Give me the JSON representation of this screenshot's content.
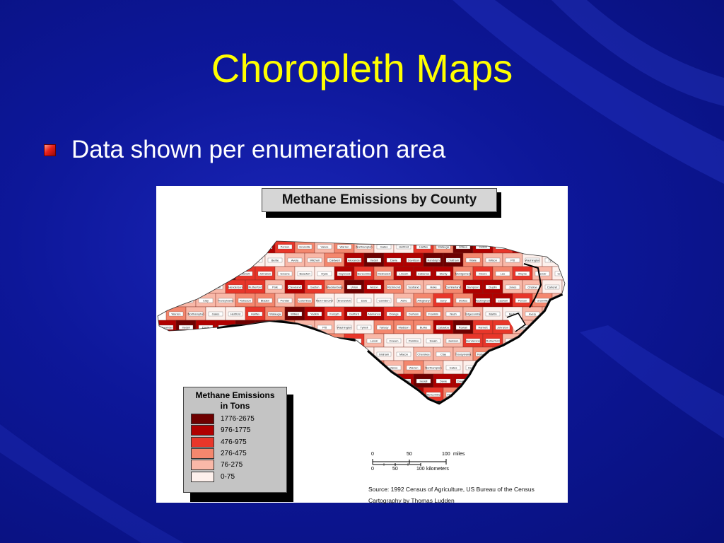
{
  "slide": {
    "title": "Choropleth Maps",
    "bullets": [
      "Data shown per enumeration area"
    ]
  },
  "map": {
    "title": "Methane Emissions by County",
    "legend": {
      "title_line1": "Methane Emissions",
      "title_line2": "in Tons",
      "classes": [
        {
          "label": "1776-2675",
          "color": "#6e0000"
        },
        {
          "label": "976-1775",
          "color": "#b00000"
        },
        {
          "label": "476-975",
          "color": "#e8362a"
        },
        {
          "label": "276-475",
          "color": "#f4876e"
        },
        {
          "label": "76-275",
          "color": "#f9b8a8"
        },
        {
          "label": "0-75",
          "color": "#fdf0ec"
        }
      ]
    },
    "scale": {
      "miles_ticks": [
        "0",
        "50",
        "100"
      ],
      "miles_unit": "miles",
      "km_ticks": [
        "0",
        "50",
        "100"
      ],
      "km_unit": "kilometers"
    },
    "source_line1": "Source: 1992 Census of Agriculture, US Bureau of the Census",
    "source_line2": "Cartography by Thomas Ludden",
    "counties": [
      {
        "name": "Ashe",
        "class": 4
      },
      {
        "name": "Alleghany",
        "class": 3
      },
      {
        "name": "Surry",
        "class": 2
      },
      {
        "name": "Stokes",
        "class": 3
      },
      {
        "name": "Rockingham",
        "class": 1
      },
      {
        "name": "Caswell",
        "class": 1
      },
      {
        "name": "Person",
        "class": 2
      },
      {
        "name": "Granville",
        "class": 3
      },
      {
        "name": "Vance",
        "class": 4
      },
      {
        "name": "Warren",
        "class": 3
      },
      {
        "name": "Northampton",
        "class": 4
      },
      {
        "name": "Gates",
        "class": 5
      },
      {
        "name": "Hertford",
        "class": 5
      },
      {
        "name": "Halifax",
        "class": 2
      },
      {
        "name": "Watauga",
        "class": 3
      },
      {
        "name": "Wilkes",
        "class": 0
      },
      {
        "name": "Yadkin",
        "class": 1
      },
      {
        "name": "Forsyth",
        "class": 2
      },
      {
        "name": "Guilford",
        "class": 1
      },
      {
        "name": "Alamance",
        "class": 1
      },
      {
        "name": "Orange",
        "class": 2
      },
      {
        "name": "Durham",
        "class": 3
      },
      {
        "name": "Franklin",
        "class": 3
      },
      {
        "name": "Nash",
        "class": 4
      },
      {
        "name": "Edgecombe",
        "class": 4
      },
      {
        "name": "Martin",
        "class": 5
      },
      {
        "name": "Bertie",
        "class": 5
      },
      {
        "name": "Avery",
        "class": 4
      },
      {
        "name": "Mitchell",
        "class": 4
      },
      {
        "name": "Caldwell",
        "class": 3
      },
      {
        "name": "Alexander",
        "class": 1
      },
      {
        "name": "Iredell",
        "class": 0
      },
      {
        "name": "Davie",
        "class": 1
      },
      {
        "name": "Davidson",
        "class": 1
      },
      {
        "name": "Randolph",
        "class": 0
      },
      {
        "name": "Chatham",
        "class": 0
      },
      {
        "name": "Wake",
        "class": 3
      },
      {
        "name": "Wilson",
        "class": 4
      },
      {
        "name": "Pitt",
        "class": 4
      },
      {
        "name": "Washington",
        "class": 5
      },
      {
        "name": "Tyrrell",
        "class": 5
      },
      {
        "name": "Yancey",
        "class": 3
      },
      {
        "name": "Madison",
        "class": 3
      },
      {
        "name": "Burke",
        "class": 3
      },
      {
        "name": "Catawba",
        "class": 1
      },
      {
        "name": "Rowan",
        "class": 0
      },
      {
        "name": "Harnett",
        "class": 2
      },
      {
        "name": "Johnston",
        "class": 2
      },
      {
        "name": "Greene",
        "class": 4
      },
      {
        "name": "Beaufort",
        "class": 5
      },
      {
        "name": "Hyde",
        "class": 5
      },
      {
        "name": "Haywood",
        "class": 1
      },
      {
        "name": "Buncombe",
        "class": 2
      },
      {
        "name": "McDowell",
        "class": 3
      },
      {
        "name": "Lincoln",
        "class": 1
      },
      {
        "name": "Cabarrus",
        "class": 1
      },
      {
        "name": "Stanly",
        "class": 1
      },
      {
        "name": "Montgomery",
        "class": 3
      },
      {
        "name": "Moore",
        "class": 2
      },
      {
        "name": "Lee",
        "class": 3
      },
      {
        "name": "Wayne",
        "class": 2
      },
      {
        "name": "Lenoir",
        "class": 4
      },
      {
        "name": "Craven",
        "class": 5
      },
      {
        "name": "Pamlico",
        "class": 5
      },
      {
        "name": "Swain",
        "class": 5
      },
      {
        "name": "Jackson",
        "class": 4
      },
      {
        "name": "Henderson",
        "class": 2
      },
      {
        "name": "Rutherford",
        "class": 2
      },
      {
        "name": "Polk",
        "class": 4
      },
      {
        "name": "Cleveland",
        "class": 1
      },
      {
        "name": "Gaston",
        "class": 2
      },
      {
        "name": "Mecklenburg",
        "class": 3
      },
      {
        "name": "Union",
        "class": 0
      },
      {
        "name": "Anson",
        "class": 1
      },
      {
        "name": "Richmond",
        "class": 3
      },
      {
        "name": "Scotland",
        "class": 4
      },
      {
        "name": "Hoke",
        "class": 4
      },
      {
        "name": "Cumberland",
        "class": 3
      },
      {
        "name": "Sampson",
        "class": 1
      },
      {
        "name": "Duplin",
        "class": 1
      },
      {
        "name": "Jones",
        "class": 4
      },
      {
        "name": "Onslow",
        "class": 4
      },
      {
        "name": "Carteret",
        "class": 5
      },
      {
        "name": "Graham",
        "class": 5
      },
      {
        "name": "Macon",
        "class": 5
      },
      {
        "name": "Cherokee",
        "class": 4
      },
      {
        "name": "Clay",
        "class": 4
      },
      {
        "name": "Transylvania",
        "class": 4
      },
      {
        "name": "Robeson",
        "class": 3
      },
      {
        "name": "Bladen",
        "class": 3
      },
      {
        "name": "Pender",
        "class": 4
      },
      {
        "name": "Columbus",
        "class": 3
      },
      {
        "name": "New Hanover",
        "class": 5
      },
      {
        "name": "Brunswick",
        "class": 5
      },
      {
        "name": "Dare",
        "class": 5
      },
      {
        "name": "Camden",
        "class": 5
      }
    ]
  }
}
